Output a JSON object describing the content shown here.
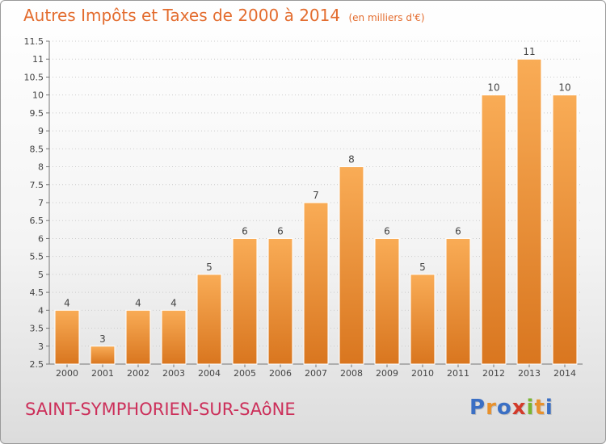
{
  "header": {
    "title": "Autres Impôts et Taxes de 2000 à 2014",
    "subtitle": "(en milliers d'€)"
  },
  "footer": {
    "commune": "SAINT-SYMPHORIEN-SUR-SAôNE",
    "logo": {
      "letters": [
        "P",
        "r",
        "o",
        "x",
        "i",
        "t",
        "i"
      ],
      "colors": [
        "#3a6fc4",
        "#e8912c",
        "#3a6fc4",
        "#d23a2a",
        "#7ab530",
        "#e8912c",
        "#3a6fc4"
      ]
    }
  },
  "colors": {
    "title": "#e36c2e",
    "commune": "#cc2f5a",
    "bar_top": "#f9ac56",
    "bar_bottom": "#d9761f",
    "grid": "#cccccc"
  },
  "chart_data": {
    "type": "bar",
    "title": "Autres Impôts et Taxes de 2000 à 2014",
    "subtitle": "(en milliers d'€)",
    "xlabel": "",
    "ylabel": "",
    "categories": [
      "2000",
      "2001",
      "2002",
      "2003",
      "2004",
      "2005",
      "2006",
      "2007",
      "2008",
      "2009",
      "2010",
      "2011",
      "2012",
      "2013",
      "2014"
    ],
    "values": [
      4,
      3,
      4,
      4,
      5,
      6,
      6,
      7,
      8,
      6,
      5,
      6,
      10,
      11,
      10
    ],
    "data_labels": [
      "4",
      "3",
      "4",
      "4",
      "5",
      "6",
      "6",
      "7",
      "8",
      "6",
      "5",
      "6",
      "10",
      "11",
      "10"
    ],
    "ylim": [
      2.5,
      11.5
    ],
    "yticks": [
      "2.5",
      "3",
      "3.5",
      "4",
      "4.5",
      "5",
      "5.5",
      "6",
      "6.5",
      "7",
      "7.5",
      "8",
      "8.5",
      "9",
      "9.5",
      "10",
      "10.5",
      "11",
      "11.5"
    ],
    "grid": true,
    "legend": "none"
  }
}
